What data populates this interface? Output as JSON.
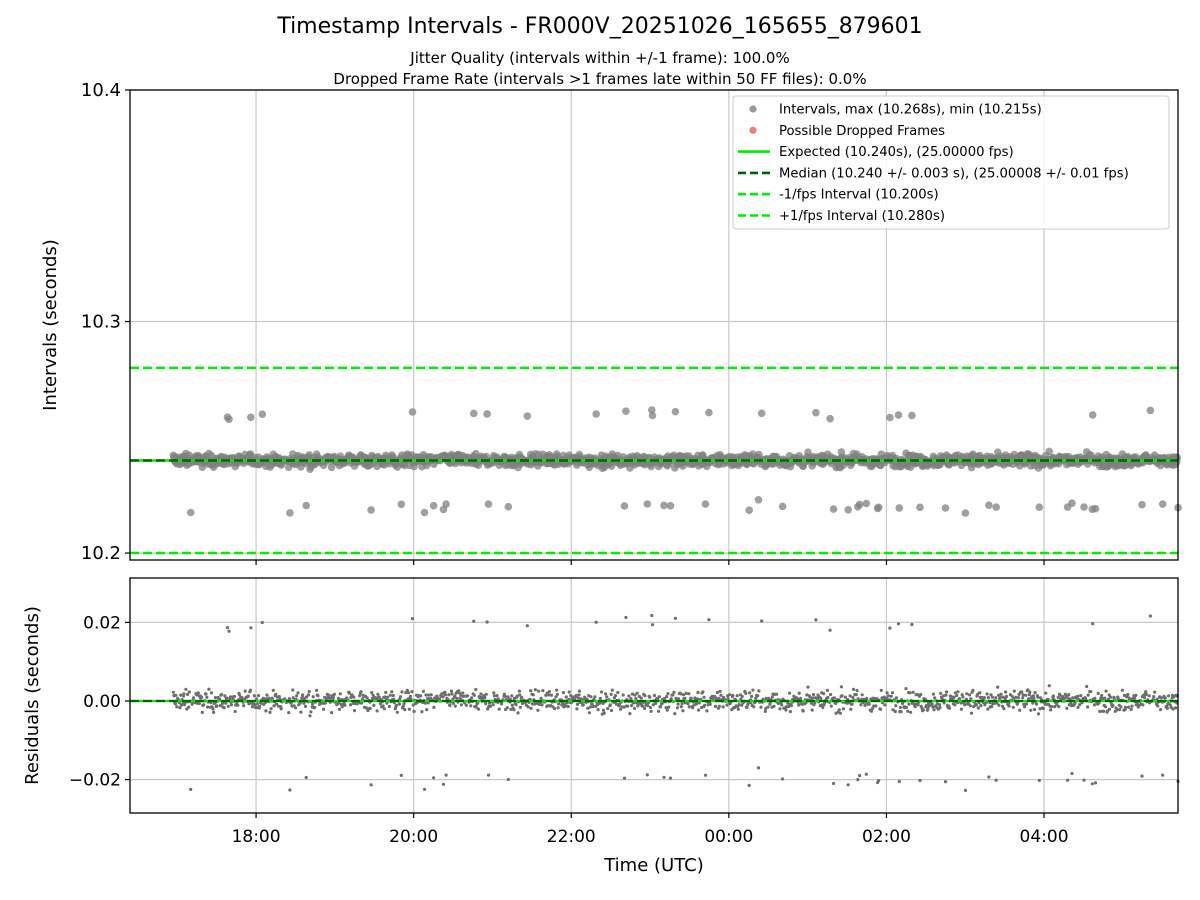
{
  "figure": {
    "title": "Timestamp Intervals - FR000V_20251026_165655_879601",
    "subtitle_lines": [
      "Jitter Quality (intervals within +/-1 frame): 100.0%",
      "Dropped Frame Rate (intervals >1 frames late within 50 FF files): 0.0%"
    ]
  },
  "colors": {
    "points": "#808080",
    "dropped": "#f05a5a",
    "expected": "#00ee00",
    "median": "#006400",
    "interval_lines": "#00ee00",
    "grid": "#c8c8c8"
  },
  "chart_data": [
    {
      "type": "scatter",
      "ylabel": "Intervals (seconds)",
      "xlabel": "",
      "x_tick_labels": [
        "18:00",
        "20:00",
        "22:00",
        "00:00",
        "02:00",
        "04:00"
      ],
      "xlim": [
        "2025-10-26T16:24",
        "2025-10-27T05:42"
      ],
      "ylim": [
        10.197,
        10.4
      ],
      "y_ticks": [
        "10.2",
        "10.3",
        "10.4"
      ],
      "grid": true,
      "legend_placement": "top-right",
      "series": [
        {
          "name": "Intervals, max (10.268s), min (10.215s)",
          "kind": "points",
          "x_range": [
            "2025-10-26T16:57",
            "2025-10-27T05:42"
          ],
          "center": 10.24,
          "bands": [
            10.24,
            10.26,
            10.22
          ],
          "max": 10.268,
          "min": 10.215
        },
        {
          "name": "Possible Dropped Frames",
          "kind": "points",
          "values": []
        },
        {
          "name": "Expected (10.240s), (25.00000 fps)",
          "kind": "hline",
          "y": 10.24,
          "style": "solid"
        },
        {
          "name": "Median (10.240 +/- 0.003 s), (25.00008 +/- 0.01 fps)",
          "kind": "hline",
          "y": 10.24,
          "style": "dashed"
        },
        {
          "name": "-1/fps Interval (10.200s)",
          "kind": "hline",
          "y": 10.2,
          "style": "dashed"
        },
        {
          "name": "+1/fps Interval (10.280s)",
          "kind": "hline",
          "y": 10.28,
          "style": "dashed"
        }
      ]
    },
    {
      "type": "scatter",
      "ylabel": "Residuals (seconds)",
      "xlabel": "Time (UTC)",
      "x_tick_labels": [
        "18:00",
        "20:00",
        "22:00",
        "00:00",
        "02:00",
        "04:00"
      ],
      "xlim": [
        "2025-10-26T16:24",
        "2025-10-27T05:42"
      ],
      "ylim": [
        -0.0285,
        0.0313
      ],
      "y_ticks": [
        "0.02",
        "0.00",
        "−0.02"
      ],
      "grid": true,
      "series": [
        {
          "name": "Residuals",
          "kind": "points",
          "bands": [
            0.0,
            0.02,
            -0.02
          ]
        },
        {
          "name": "Zero",
          "kind": "hline",
          "y": 0.0
        }
      ]
    }
  ]
}
